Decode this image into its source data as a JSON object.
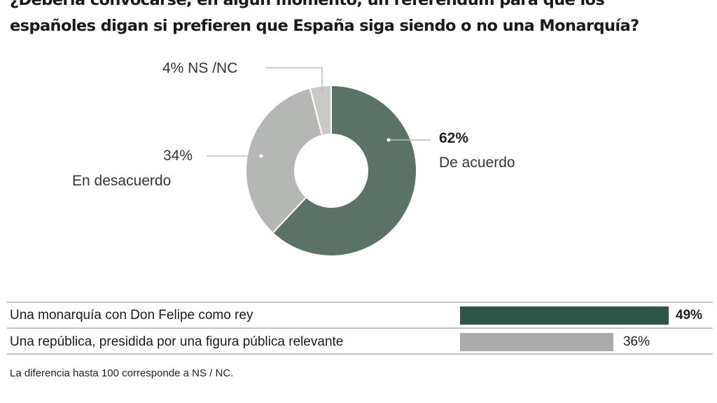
{
  "chart_data": [
    {
      "type": "pie",
      "title": "¿Debería convocarse, en algún momento, un referéndum para que los españoles digan si prefieren que España siga siendo o no una Monarquía?",
      "title_lines": [
        "¿Debería convocarse, en algún momento, un referéndum para que los",
        "españoles digan si prefieren que España siga siendo o no una Monarquía?"
      ],
      "donut": true,
      "slices": [
        {
          "name": "De acuerdo",
          "value": 62,
          "label": "62%",
          "color": "#5b7266"
        },
        {
          "name": "En desacuerdo",
          "value": 34,
          "label": "34%",
          "color": "#b4b7b3"
        },
        {
          "name": "NS /NC",
          "value": 4,
          "label": "4% NS /NC",
          "color": "#c9c9c7"
        }
      ]
    },
    {
      "type": "bar",
      "orientation": "horizontal",
      "categories": [
        "Una monarquía con Don Felipe como rey",
        "Una república, presidida por una figura pública relevante"
      ],
      "values": [
        49,
        36
      ],
      "labels": [
        "49%",
        "36%"
      ],
      "colors": [
        "#2f5547",
        "#a9aca8"
      ],
      "note": "La diferencia hasta 100 corresponde a NS / NC."
    }
  ]
}
